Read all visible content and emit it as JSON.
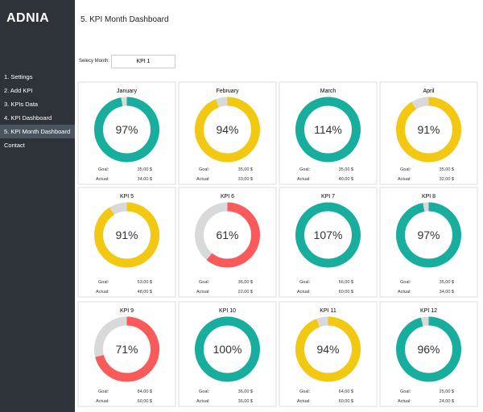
{
  "sidebar": {
    "logo": "ADNIA",
    "menu": [
      "1. Settings",
      "2. Add KPI",
      "3. KPIs Data",
      "4. KPI Dashboard",
      "5. KPI Month Dashboard",
      "Contact"
    ],
    "active": 4
  },
  "header": {
    "title": "5. KPI Month Dashboard"
  },
  "selector": {
    "label": "Selecy Month:",
    "value": "KPI 1"
  },
  "goal_label": "Goal:",
  "actual_label": "Actual:",
  "cards": [
    {
      "title": "January",
      "value": 97,
      "value_label": "97%",
      "color": "#17ae9e",
      "goal": "35,00 $",
      "actual": "34,00 $"
    },
    {
      "title": "February",
      "value": 94,
      "value_label": "94%",
      "color": "#f2c811",
      "goal": "35,00 $",
      "actual": "33,00 $"
    },
    {
      "title": "March",
      "value": 114,
      "value_label": "114%",
      "color": "#17ae9e",
      "goal": "35,00 $",
      "actual": "40,00 $"
    },
    {
      "title": "April",
      "value": 91,
      "value_label": "91%",
      "color": "#f2c811",
      "goal": "35,00 $",
      "actual": "32,00 $"
    },
    {
      "title": "KPI 5",
      "value": 91,
      "value_label": "91%",
      "color": "#f2c811",
      "goal": "53,00 $",
      "actual": "48,00 $"
    },
    {
      "title": "KPI 6",
      "value": 61,
      "value_label": "61%",
      "color": "#fa5a5a",
      "goal": "36,00 $",
      "actual": "22,00 $"
    },
    {
      "title": "KPI 7",
      "value": 107,
      "value_label": "107%",
      "color": "#17ae9e",
      "goal": "56,00 $",
      "actual": "60,00 $"
    },
    {
      "title": "KPI 8",
      "value": 97,
      "value_label": "97%",
      "color": "#17ae9e",
      "goal": "35,00 $",
      "actual": "34,00 $"
    },
    {
      "title": "KPI 9",
      "value": 71,
      "value_label": "71%",
      "color": "#fa5a5a",
      "goal": "84,00 $",
      "actual": "60,00 $"
    },
    {
      "title": "KPI 10",
      "value": 100,
      "value_label": "100%",
      "color": "#17ae9e",
      "goal": "36,00 $",
      "actual": "36,00 $"
    },
    {
      "title": "KPI 11",
      "value": 94,
      "value_label": "94%",
      "color": "#f2c811",
      "goal": "64,00 $",
      "actual": "60,00 $"
    },
    {
      "title": "KPI 12",
      "value": 96,
      "value_label": "96%",
      "color": "#17ae9e",
      "goal": "25,00 $",
      "actual": "24,00 $"
    }
  ]
}
